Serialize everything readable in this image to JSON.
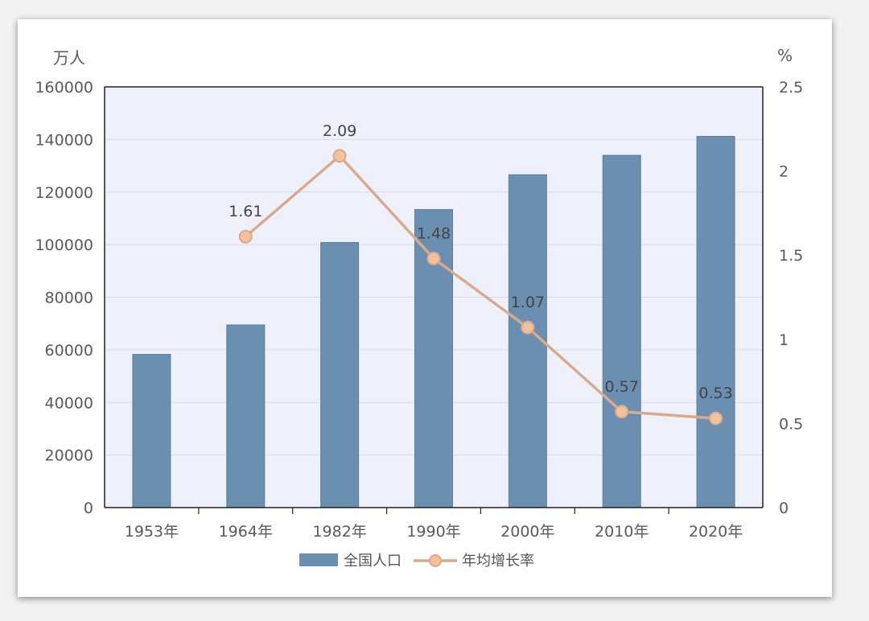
{
  "chart_data": {
    "type": "bar+line",
    "categories": [
      "1953年",
      "1964年",
      "1982年",
      "1990年",
      "2000年",
      "2010年",
      "2020年"
    ],
    "series": [
      {
        "name": "全国人口",
        "type": "bar",
        "axis": "left",
        "values": [
          58260,
          69458,
          100818,
          113368,
          126583,
          133972,
          141178
        ]
      },
      {
        "name": "年均增长率",
        "type": "line",
        "axis": "right",
        "values": [
          null,
          1.61,
          2.09,
          1.48,
          1.07,
          0.57,
          0.53
        ],
        "labels": [
          "",
          "1.61",
          "2.09",
          "1.48",
          "1.07",
          "0.57",
          "0.53"
        ]
      }
    ],
    "left_axis": {
      "unit": "万人",
      "ylim": [
        0,
        160000
      ],
      "ticks": [
        "0",
        "20000",
        "40000",
        "60000",
        "80000",
        "100000",
        "120000",
        "140000",
        "160000"
      ]
    },
    "right_axis": {
      "unit": "%",
      "ylim": [
        0,
        2.5
      ],
      "ticks": [
        "0",
        "0.5",
        "1",
        "1.5",
        "2",
        "2.5"
      ]
    },
    "grid": true,
    "legend_position": "bottom-center",
    "colors": {
      "bar": "#6a8fb0",
      "bar_edge": "#5a7fa0",
      "line": "#d9ab8c",
      "marker": "#f3c29d",
      "plot_bg": "#eef1fb",
      "gridline": "#d6dcec"
    }
  }
}
